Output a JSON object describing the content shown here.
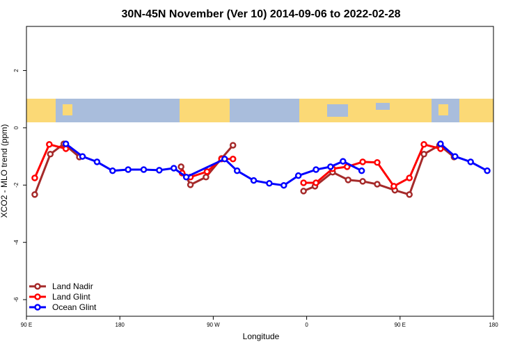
{
  "chart_data": {
    "type": "line",
    "title": "30N-45N November (Ver 10)   2014-09-06 to 2022-02-28",
    "x_label": "Longitude",
    "y_label": "XCO2 - MLO trend (ppm)",
    "xlim": [
      90,
      540
    ],
    "ylim": [
      -6.58,
      3.54
    ],
    "xticks": [
      {
        "value": 90,
        "label": "90 E"
      },
      {
        "value": 180,
        "label": "180"
      },
      {
        "value": 270,
        "label": "90 W"
      },
      {
        "value": 360,
        "label": "0"
      },
      {
        "value": 450,
        "label": "90 E"
      },
      {
        "value": 540,
        "label": "180"
      }
    ],
    "yticks": [
      2,
      0,
      -2,
      -4,
      -6
    ],
    "legend": "bottom-left",
    "series": [
      {
        "name": "Land Nadir",
        "color": "#a52a2a",
        "x": [
          98,
          113,
          126,
          141,
          null,
          239,
          248,
          263,
          278,
          289,
          null,
          357,
          368,
          385,
          400,
          414,
          428,
          445,
          459,
          473,
          488,
          502
        ],
        "values": [
          -2.33,
          -0.92,
          -0.56,
          -1.02,
          null,
          -1.36,
          -1.99,
          -1.72,
          -1.07,
          -0.61,
          null,
          -2.21,
          -2.04,
          -1.55,
          -1.82,
          -1.87,
          -1.97,
          -2.18,
          -2.33,
          -0.92,
          -0.61,
          -1.02
        ]
      },
      {
        "name": "Land Glint",
        "color": "#ff0000",
        "x": [
          98,
          112,
          128,
          null,
          240,
          248,
          264,
          278,
          289,
          null,
          357,
          369,
          385,
          399,
          414,
          428,
          444,
          459,
          473,
          489
        ],
        "values": [
          -1.75,
          -0.58,
          -0.73,
          null,
          -1.58,
          -1.72,
          -1.53,
          -1.09,
          -1.09,
          null,
          -1.92,
          -1.92,
          -1.43,
          -1.36,
          -1.19,
          -1.21,
          -2.04,
          -1.75,
          -0.58,
          -0.73
        ]
      },
      {
        "name": "Ocean Glint",
        "color": "#0000ff",
        "x": [
          128,
          144,
          158,
          173,
          188,
          203,
          218,
          232,
          244,
          281,
          293,
          309,
          324,
          338,
          352,
          369,
          383,
          395,
          413,
          null,
          489,
          503,
          518,
          534
        ],
        "values": [
          -0.56,
          -1.0,
          -1.19,
          -1.5,
          -1.46,
          -1.46,
          -1.48,
          -1.41,
          -1.72,
          -1.09,
          -1.5,
          -1.84,
          -1.94,
          -2.01,
          -1.67,
          -1.46,
          -1.36,
          -1.17,
          -1.5,
          null,
          -0.56,
          -1.0,
          -1.19,
          -1.5
        ]
      }
    ]
  }
}
